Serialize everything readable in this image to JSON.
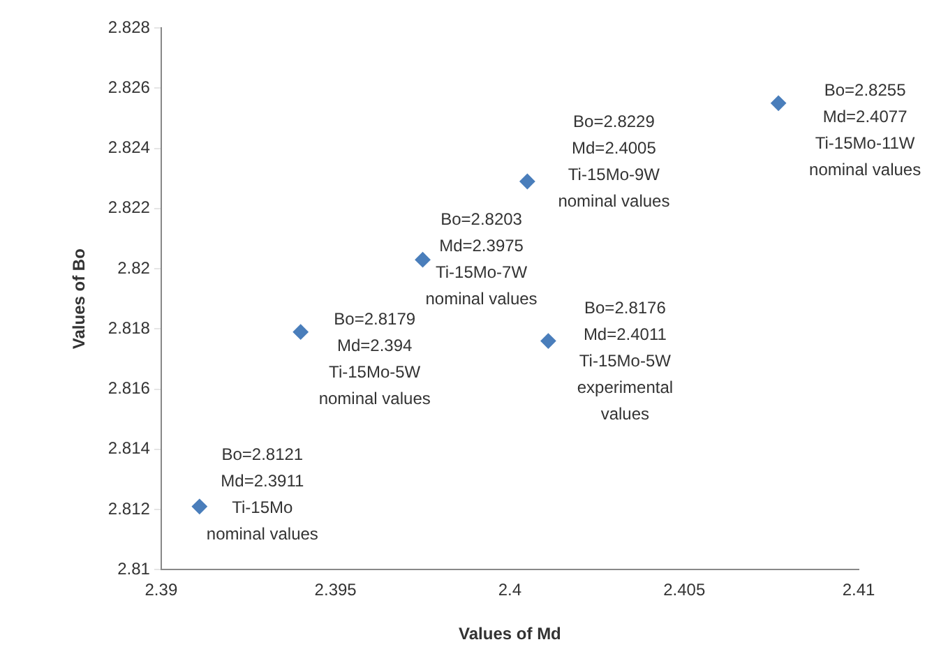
{
  "chart_data": {
    "type": "scatter",
    "xlabel": "Values of Md",
    "ylabel": "Values of Bo",
    "x": [
      2.3911,
      2.394,
      2.3975,
      2.4005,
      2.4077,
      2.4011
    ],
    "values": [
      2.8121,
      2.8179,
      2.8203,
      2.8229,
      2.8255,
      2.8176
    ],
    "color": "#4a7ebb",
    "marker": "diamond",
    "xlim": [
      2.39,
      2.41
    ],
    "xticks": [
      2.39,
      2.395,
      2.4,
      2.405,
      2.41
    ],
    "ylim": [
      2.81,
      2.828
    ],
    "yticks": [
      2.81,
      2.812,
      2.814,
      2.816,
      2.818,
      2.82,
      2.822,
      2.824,
      2.826,
      2.828
    ],
    "grid": false,
    "legend": false,
    "annotations": [
      {
        "text": "Bo=2.8121\nMd=2.3911\nTi-15Mo\nnominal values",
        "x": 2.3911,
        "y": 2.8121
      },
      {
        "text": "Bo=2.8179\nMd=2.394\nTi-15Mo-5W\nnominal values",
        "x": 2.394,
        "y": 2.8179
      },
      {
        "text": "Bo=2.8203\nMd=2.3975\nTi-15Mo-7W\nnominal values",
        "x": 2.3975,
        "y": 2.8203
      },
      {
        "text": "Bo=2.8229\nMd=2.4005\nTi-15Mo-9W\nnominal values",
        "x": 2.4005,
        "y": 2.8229
      },
      {
        "text": "Bo=2.8255\nMd=2.4077\nTi-15Mo-11W\nnominal values",
        "x": 2.4077,
        "y": 2.8255
      },
      {
        "text": "Bo=2.8176\nMd=2.4011\nTi-15Mo-5W\nexperimental\nvalues",
        "x": 2.4011,
        "y": 2.8176
      }
    ]
  }
}
